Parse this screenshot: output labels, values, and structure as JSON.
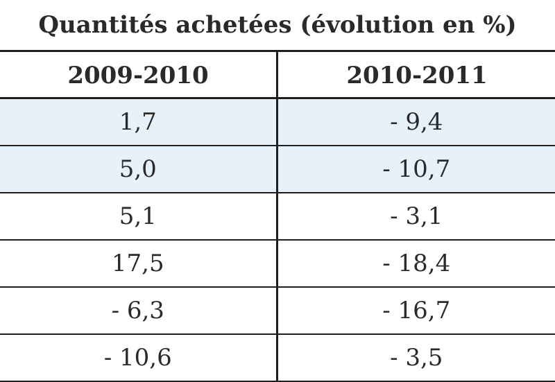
{
  "table": {
    "title": "Quantités achetées (évolution en %)",
    "headers": [
      "2009-2010",
      "2010-2011"
    ],
    "rows": [
      [
        "1,7",
        "- 9,4"
      ],
      [
        "5,0",
        "- 10,7"
      ],
      [
        "5,1",
        "- 3,1"
      ],
      [
        "17,5",
        "- 18,4"
      ],
      [
        "- 6,3",
        "- 16,7"
      ],
      [
        "- 10,6",
        "- 3,5"
      ]
    ],
    "row_shading": [
      "shaded",
      "shaded",
      "plain",
      "plain",
      "plain",
      "plain"
    ]
  }
}
